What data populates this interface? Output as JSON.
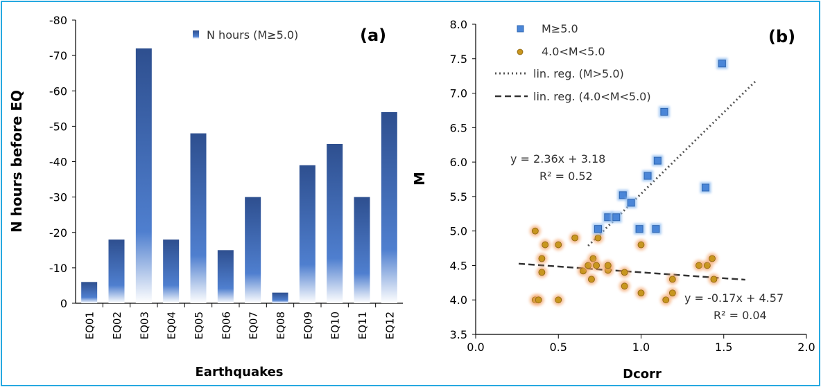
{
  "chart_data": [
    {
      "type": "bar",
      "panel_label": "(a)",
      "xlabel": "Earthquakes",
      "ylabel": "N hours before EQ",
      "ylim": [
        0,
        -80
      ],
      "yticks": [
        0,
        -10,
        -20,
        -30,
        -40,
        -50,
        -60,
        -70,
        -80
      ],
      "y_inverted": true,
      "legend_position": "top-right",
      "categories": [
        "EQ01",
        "EQ02",
        "EQ03",
        "EQ04",
        "EQ05",
        "EQ06",
        "EQ07",
        "EQ08",
        "EQ09",
        "EQ10",
        "EQ11",
        "EQ12"
      ],
      "series": [
        {
          "name": "N hours (M≥5.0)",
          "values": [
            -6,
            -18,
            -72,
            -18,
            -48,
            -15,
            -30,
            -3,
            -39,
            -45,
            -30,
            -54
          ],
          "color_top": "#2e4f8f",
          "color_mid": "#4f7fcf",
          "color_bottom": "#ffffff"
        }
      ],
      "grid": false
    },
    {
      "type": "scatter",
      "panel_label": "(b)",
      "xlabel": "Dcorr",
      "ylabel": "M",
      "xlim": [
        0,
        2
      ],
      "ylim": [
        3.5,
        8
      ],
      "xticks": [
        "0.0",
        "0.5",
        "1.0",
        "1.5",
        "2.0"
      ],
      "yticks": [
        "3.5",
        "4.0",
        "4.5",
        "5.0",
        "5.5",
        "6.0",
        "6.5",
        "7.0",
        "7.5",
        "8.0"
      ],
      "legend_position": "top-left",
      "grid": false,
      "series": [
        {
          "name": "M≥5.0",
          "marker": "square",
          "color": "#4a86d8",
          "points": [
            [
              0.74,
              5.03
            ],
            [
              0.8,
              5.2
            ],
            [
              0.85,
              5.2
            ],
            [
              0.89,
              5.52
            ],
            [
              0.94,
              5.41
            ],
            [
              0.99,
              5.03
            ],
            [
              1.04,
              5.8
            ],
            [
              1.09,
              5.03
            ],
            [
              1.1,
              6.02
            ],
            [
              1.14,
              6.73
            ],
            [
              1.39,
              5.63
            ],
            [
              1.49,
              7.43
            ]
          ]
        },
        {
          "name": "4.0<M<5.0",
          "marker": "circle",
          "color": "#c8961e",
          "points": [
            [
              0.36,
              5.0
            ],
            [
              0.36,
              4.0
            ],
            [
              0.38,
              4.0
            ],
            [
              0.4,
              4.6
            ],
            [
              0.4,
              4.4
            ],
            [
              0.42,
              4.8
            ],
            [
              0.5,
              4.8
            ],
            [
              0.5,
              4.0
            ],
            [
              0.6,
              4.9
            ],
            [
              0.65,
              4.42
            ],
            [
              0.68,
              4.5
            ],
            [
              0.7,
              4.3
            ],
            [
              0.71,
              4.6
            ],
            [
              0.73,
              4.5
            ],
            [
              0.74,
              4.9
            ],
            [
              0.8,
              4.43
            ],
            [
              0.8,
              4.5
            ],
            [
              0.9,
              4.4
            ],
            [
              0.9,
              4.2
            ],
            [
              1.0,
              4.8
            ],
            [
              1.0,
              4.1
            ],
            [
              1.15,
              4.0
            ],
            [
              1.19,
              4.3
            ],
            [
              1.19,
              4.1
            ],
            [
              1.35,
              4.5
            ],
            [
              1.4,
              4.5
            ],
            [
              1.43,
              4.6
            ],
            [
              1.44,
              4.3
            ]
          ]
        },
        {
          "name": "lin. reg. (M>5.0)",
          "line_style": "dotted",
          "color": "#555555",
          "equation": "y = 2.36x + 3.18",
          "r2": "R² = 0.52",
          "slope": 2.36,
          "intercept": 3.18,
          "x_range": [
            0.68,
            1.7
          ]
        },
        {
          "name": "lin. reg. (4.0<M<5.0)",
          "line_style": "dashed",
          "color": "#333333",
          "equation": "y = -0.17x + 4.57",
          "r2": "R² = 0.04",
          "slope": -0.17,
          "intercept": 4.57,
          "x_range": [
            0.26,
            1.63
          ]
        }
      ]
    }
  ],
  "colors": {
    "frame_border": "#26a9e0",
    "axis": "#000000"
  }
}
